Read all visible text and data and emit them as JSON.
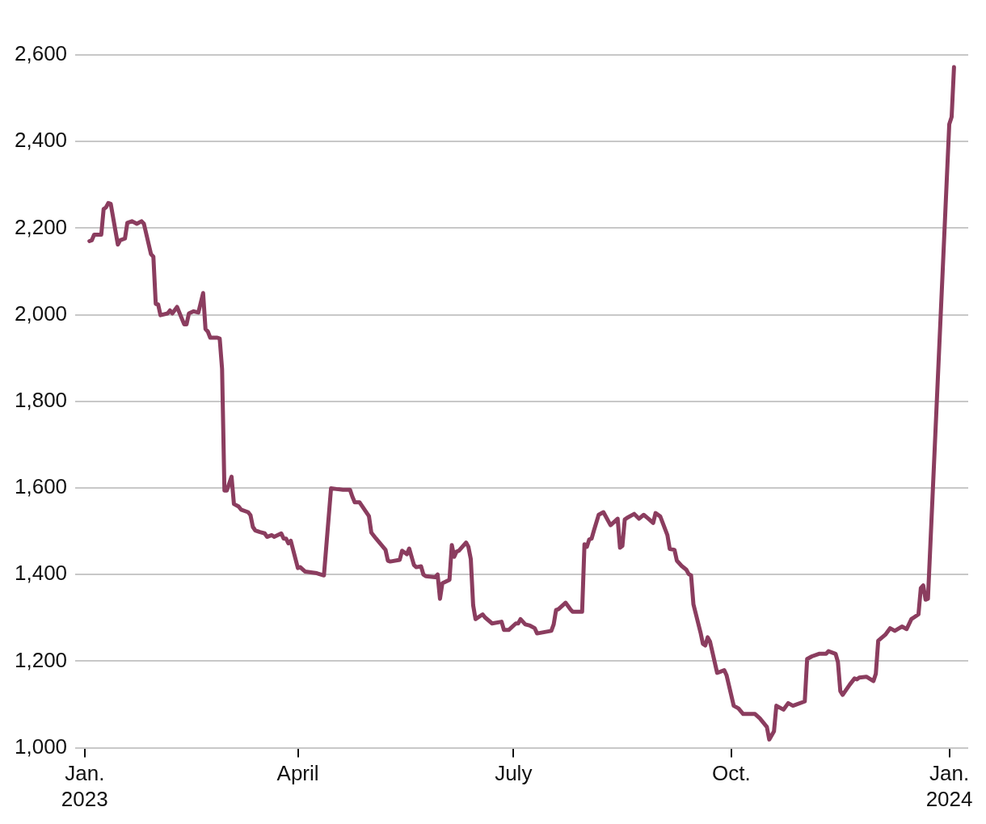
{
  "chart_data": {
    "type": "line",
    "color": "#8b3d5f",
    "grid": "y",
    "xlim": [
      "2022-12-28",
      "2024-01-09"
    ],
    "xticks": [
      {
        "value": "2023-01-01",
        "label": "Jan.\n2023"
      },
      {
        "value": "2023-04-01",
        "label": "April"
      },
      {
        "value": "2023-07-01",
        "label": "July"
      },
      {
        "value": "2023-10-01",
        "label": "Oct."
      },
      {
        "value": "2024-01-01",
        "label": "Jan.\n2024"
      }
    ],
    "ylim": [
      1000,
      2600
    ],
    "yticks": [
      {
        "value": 1000,
        "label": "1,000"
      },
      {
        "value": 1200,
        "label": "1,200"
      },
      {
        "value": 1400,
        "label": "1,400"
      },
      {
        "value": 1600,
        "label": "1,600"
      },
      {
        "value": 1800,
        "label": "1,800"
      },
      {
        "value": 2000,
        "label": "2,000"
      },
      {
        "value": 2200,
        "label": "2,200"
      },
      {
        "value": 2400,
        "label": "2,400"
      },
      {
        "value": 2600,
        "label": "2,600"
      }
    ],
    "x": [
      "2023-01-03",
      "2023-01-04",
      "2023-01-05",
      "2023-01-08",
      "2023-01-09",
      "2023-01-10",
      "2023-01-11",
      "2023-01-12",
      "2023-01-15",
      "2023-01-16",
      "2023-01-18",
      "2023-01-19",
      "2023-01-21",
      "2023-01-23",
      "2023-01-25",
      "2023-01-26",
      "2023-01-29",
      "2023-01-30",
      "2023-01-31",
      "2023-02-01",
      "2023-02-02",
      "2023-02-05",
      "2023-02-06",
      "2023-02-07",
      "2023-02-09",
      "2023-02-12",
      "2023-02-13",
      "2023-02-14",
      "2023-02-16",
      "2023-02-18",
      "2023-02-20",
      "2023-02-21",
      "2023-02-22",
      "2023-02-23",
      "2023-02-26",
      "2023-02-27",
      "2023-02-28",
      "2023-03-01",
      "2023-03-02",
      "2023-03-04",
      "2023-03-05",
      "2023-03-07",
      "2023-03-08",
      "2023-03-11",
      "2023-03-12",
      "2023-03-13",
      "2023-03-14",
      "2023-03-16",
      "2023-03-18",
      "2023-03-19",
      "2023-03-21",
      "2023-03-22",
      "2023-03-25",
      "2023-03-26",
      "2023-03-27",
      "2023-03-28",
      "2023-03-29",
      "2023-04-01",
      "2023-04-02",
      "2023-04-04",
      "2023-04-09",
      "2023-04-12",
      "2023-04-15",
      "2023-04-18",
      "2023-04-20",
      "2023-04-23",
      "2023-04-24",
      "2023-04-25",
      "2023-04-27",
      "2023-05-01",
      "2023-05-02",
      "2023-05-04",
      "2023-05-08",
      "2023-05-09",
      "2023-05-10",
      "2023-05-14",
      "2023-05-15",
      "2023-05-17",
      "2023-05-18",
      "2023-05-20",
      "2023-05-21",
      "2023-05-23",
      "2023-05-24",
      "2023-05-25",
      "2023-05-29",
      "2023-05-30",
      "2023-05-31",
      "2023-06-01",
      "2023-06-04",
      "2023-06-05",
      "2023-06-06",
      "2023-06-07",
      "2023-06-08",
      "2023-06-11",
      "2023-06-12",
      "2023-06-13",
      "2023-06-14",
      "2023-06-15",
      "2023-06-18",
      "2023-06-19",
      "2023-06-22",
      "2023-06-26",
      "2023-06-27",
      "2023-06-29",
      "2023-07-02",
      "2023-07-03",
      "2023-07-04",
      "2023-07-06",
      "2023-07-08",
      "2023-07-10",
      "2023-07-11",
      "2023-07-17",
      "2023-07-18",
      "2023-07-19",
      "2023-07-20",
      "2023-07-23",
      "2023-07-25",
      "2023-07-26",
      "2023-07-30",
      "2023-07-31",
      "2023-08-01",
      "2023-08-02",
      "2023-08-03",
      "2023-08-04",
      "2023-08-06",
      "2023-08-08",
      "2023-08-11",
      "2023-08-14",
      "2023-08-15",
      "2023-08-16",
      "2023-08-17",
      "2023-08-18",
      "2023-08-21",
      "2023-08-23",
      "2023-08-25",
      "2023-08-27",
      "2023-08-29",
      "2023-08-30",
      "2023-09-01",
      "2023-09-04",
      "2023-09-05",
      "2023-09-07",
      "2023-09-08",
      "2023-09-10",
      "2023-09-12",
      "2023-09-13",
      "2023-09-14",
      "2023-09-15",
      "2023-09-18",
      "2023-09-19",
      "2023-09-20",
      "2023-09-21",
      "2023-09-22",
      "2023-09-25",
      "2023-09-26",
      "2023-09-28",
      "2023-09-29",
      "2023-10-02",
      "2023-10-04",
      "2023-10-06",
      "2023-10-11",
      "2023-10-13",
      "2023-10-16",
      "2023-10-17",
      "2023-10-19",
      "2023-10-20",
      "2023-10-23",
      "2023-10-25",
      "2023-10-27",
      "2023-11-01",
      "2023-11-02",
      "2023-11-04",
      "2023-11-07",
      "2023-11-10",
      "2023-11-11",
      "2023-11-14",
      "2023-11-15",
      "2023-11-16",
      "2023-11-17",
      "2023-11-20",
      "2023-11-22",
      "2023-11-23",
      "2023-11-24",
      "2023-11-27",
      "2023-11-30",
      "2023-12-01",
      "2023-12-02",
      "2023-12-05",
      "2023-12-07",
      "2023-12-09",
      "2023-12-12",
      "2023-12-14",
      "2023-12-16",
      "2023-12-19",
      "2023-12-20",
      "2023-12-21",
      "2023-12-22",
      "2023-12-23",
      "2024-01-01",
      "2024-01-02",
      "2024-01-03"
    ],
    "values": [
      2170,
      2172,
      2185,
      2185,
      2244,
      2248,
      2258,
      2256,
      2162,
      2172,
      2176,
      2212,
      2216,
      2210,
      2216,
      2210,
      2140,
      2134,
      2025,
      2024,
      1999,
      2003,
      2010,
      2003,
      2018,
      1978,
      1978,
      2003,
      2008,
      2005,
      2050,
      1967,
      1961,
      1947,
      1947,
      1945,
      1875,
      1594,
      1594,
      1626,
      1563,
      1557,
      1550,
      1544,
      1537,
      1510,
      1502,
      1498,
      1495,
      1487,
      1491,
      1487,
      1495,
      1483,
      1483,
      1472,
      1478,
      1415,
      1417,
      1407,
      1403,
      1398,
      1599,
      1597,
      1596,
      1596,
      1580,
      1567,
      1567,
      1535,
      1497,
      1483,
      1457,
      1432,
      1430,
      1434,
      1455,
      1447,
      1460,
      1422,
      1417,
      1419,
      1400,
      1396,
      1394,
      1400,
      1344,
      1380,
      1388,
      1468,
      1441,
      1453,
      1455,
      1474,
      1464,
      1436,
      1329,
      1297,
      1308,
      1301,
      1287,
      1291,
      1272,
      1272,
      1287,
      1287,
      1297,
      1285,
      1282,
      1276,
      1264,
      1270,
      1285,
      1318,
      1320,
      1335,
      1320,
      1314,
      1314,
      1470,
      1464,
      1481,
      1483,
      1502,
      1538,
      1544,
      1514,
      1529,
      1462,
      1466,
      1527,
      1531,
      1540,
      1529,
      1538,
      1529,
      1519,
      1542,
      1534,
      1491,
      1459,
      1457,
      1432,
      1420,
      1411,
      1401,
      1398,
      1331,
      1266,
      1240,
      1236,
      1255,
      1245,
      1173,
      1175,
      1179,
      1167,
      1097,
      1091,
      1078,
      1078,
      1068,
      1048,
      1019,
      1038,
      1097,
      1088,
      1103,
      1097,
      1107,
      1205,
      1211,
      1217,
      1217,
      1223,
      1217,
      1198,
      1131,
      1122,
      1146,
      1160,
      1158,
      1162,
      1164,
      1154,
      1171,
      1247,
      1261,
      1276,
      1270,
      1280,
      1274,
      1297,
      1308,
      1369,
      1375,
      1342,
      1344,
      2440,
      2457,
      2572
    ]
  }
}
